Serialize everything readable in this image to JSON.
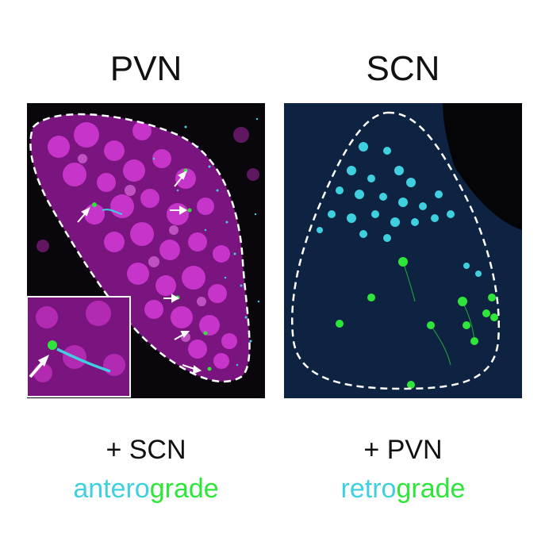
{
  "panels": [
    {
      "title": "PVN",
      "caption_line1": "+ SCN",
      "caption_part_a": "antero",
      "caption_part_b": "grade"
    },
    {
      "title": "SCN",
      "caption_line1": "+ PVN",
      "caption_part_a": "retro",
      "caption_part_b": "grade"
    }
  ],
  "colors": {
    "background": "#ffffff",
    "magenta_stain": "#c21fc2",
    "cyan_label": "#3fd0e0",
    "green_label": "#2ee63a",
    "blue_stain": "#1a2a80",
    "tissue_dark": "#08080c"
  }
}
